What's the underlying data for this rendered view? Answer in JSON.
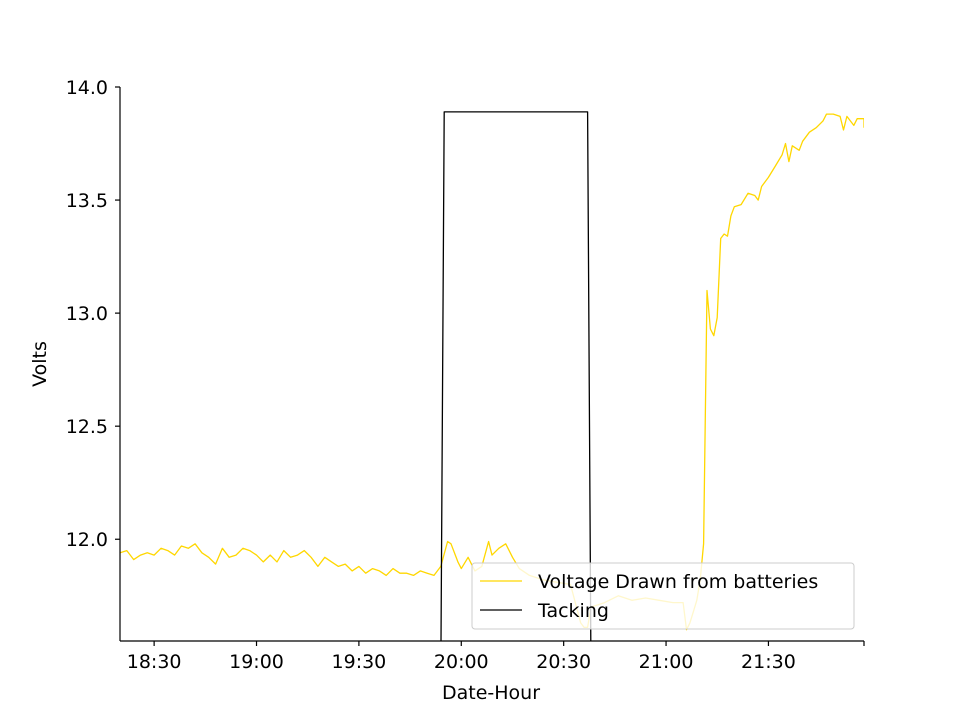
{
  "chart_data": {
    "type": "line",
    "title": "",
    "xlabel": "Date-Hour",
    "ylabel": "Volts",
    "xlim": [
      "18:20",
      "21:58"
    ],
    "ylim": [
      11.55,
      14.0
    ],
    "x_ticks": [
      "18:30",
      "19:00",
      "19:30",
      "20:00",
      "20:30",
      "21:00",
      "21:30"
    ],
    "y_ticks": [
      "12.0",
      "12.5",
      "13.0",
      "13.5",
      "14.0"
    ],
    "grid": false,
    "legend_position": "lower-right",
    "series": [
      {
        "name": "Voltage Drawn from batteries",
        "color": "#ffd700",
        "points": [
          [
            "18:20",
            11.94
          ],
          [
            "18:22",
            11.95
          ],
          [
            "18:24",
            11.91
          ],
          [
            "18:26",
            11.93
          ],
          [
            "18:28",
            11.94
          ],
          [
            "18:30",
            11.93
          ],
          [
            "18:32",
            11.96
          ],
          [
            "18:34",
            11.95
          ],
          [
            "18:36",
            11.93
          ],
          [
            "18:38",
            11.97
          ],
          [
            "18:40",
            11.96
          ],
          [
            "18:42",
            11.98
          ],
          [
            "18:44",
            11.94
          ],
          [
            "18:46",
            11.92
          ],
          [
            "18:48",
            11.89
          ],
          [
            "18:50",
            11.96
          ],
          [
            "18:52",
            11.92
          ],
          [
            "18:54",
            11.93
          ],
          [
            "18:56",
            11.96
          ],
          [
            "18:58",
            11.95
          ],
          [
            "19:00",
            11.93
          ],
          [
            "19:02",
            11.9
          ],
          [
            "19:04",
            11.93
          ],
          [
            "19:06",
            11.9
          ],
          [
            "19:08",
            11.95
          ],
          [
            "19:10",
            11.92
          ],
          [
            "19:12",
            11.93
          ],
          [
            "19:14",
            11.95
          ],
          [
            "19:16",
            11.92
          ],
          [
            "19:18",
            11.88
          ],
          [
            "19:20",
            11.92
          ],
          [
            "19:22",
            11.9
          ],
          [
            "19:24",
            11.88
          ],
          [
            "19:26",
            11.89
          ],
          [
            "19:28",
            11.86
          ],
          [
            "19:30",
            11.88
          ],
          [
            "19:32",
            11.85
          ],
          [
            "19:34",
            11.87
          ],
          [
            "19:36",
            11.86
          ],
          [
            "19:38",
            11.84
          ],
          [
            "19:40",
            11.87
          ],
          [
            "19:42",
            11.85
          ],
          [
            "19:44",
            11.85
          ],
          [
            "19:46",
            11.84
          ],
          [
            "19:48",
            11.86
          ],
          [
            "19:50",
            11.85
          ],
          [
            "19:52",
            11.84
          ],
          [
            "19:54",
            11.88
          ],
          [
            "19:56",
            11.99
          ],
          [
            "19:57",
            11.98
          ],
          [
            "19:59",
            11.9
          ],
          [
            "20:00",
            11.87
          ],
          [
            "20:02",
            11.92
          ],
          [
            "20:04",
            11.86
          ],
          [
            "20:06",
            11.88
          ],
          [
            "20:08",
            11.99
          ],
          [
            "20:09",
            11.93
          ],
          [
            "20:11",
            11.96
          ],
          [
            "20:13",
            11.98
          ],
          [
            "20:15",
            11.92
          ],
          [
            "20:17",
            11.87
          ],
          [
            "20:20",
            11.84
          ],
          [
            "20:24",
            11.82
          ],
          [
            "20:28",
            11.81
          ],
          [
            "20:32",
            11.8
          ],
          [
            "20:35",
            11.63
          ],
          [
            "20:36",
            11.61
          ],
          [
            "20:37",
            11.61
          ],
          [
            "20:38",
            11.7
          ],
          [
            "20:42",
            11.72
          ],
          [
            "20:46",
            11.75
          ],
          [
            "20:50",
            11.73
          ],
          [
            "20:54",
            11.74
          ],
          [
            "20:58",
            11.73
          ],
          [
            "21:02",
            11.72
          ],
          [
            "21:05",
            11.72
          ],
          [
            "21:06",
            11.6
          ],
          [
            "21:07",
            11.63
          ],
          [
            "21:08",
            11.68
          ],
          [
            "21:09",
            11.73
          ],
          [
            "21:10",
            11.82
          ],
          [
            "21:11",
            11.98
          ],
          [
            "21:12",
            13.1
          ],
          [
            "21:13",
            12.93
          ],
          [
            "21:14",
            12.9
          ],
          [
            "21:15",
            12.98
          ],
          [
            "21:16",
            13.33
          ],
          [
            "21:17",
            13.35
          ],
          [
            "21:18",
            13.34
          ],
          [
            "21:19",
            13.43
          ],
          [
            "21:20",
            13.47
          ],
          [
            "21:22",
            13.48
          ],
          [
            "21:24",
            13.53
          ],
          [
            "21:26",
            13.52
          ],
          [
            "21:27",
            13.5
          ],
          [
            "21:28",
            13.56
          ],
          [
            "21:30",
            13.6
          ],
          [
            "21:32",
            13.65
          ],
          [
            "21:34",
            13.7
          ],
          [
            "21:35",
            13.75
          ],
          [
            "21:36",
            13.67
          ],
          [
            "21:37",
            13.74
          ],
          [
            "21:39",
            13.72
          ],
          [
            "21:40",
            13.76
          ],
          [
            "21:42",
            13.8
          ],
          [
            "21:44",
            13.82
          ],
          [
            "21:46",
            13.85
          ],
          [
            "21:47",
            13.88
          ],
          [
            "21:49",
            13.88
          ],
          [
            "21:51",
            13.87
          ],
          [
            "21:52",
            13.81
          ],
          [
            "21:53",
            13.87
          ],
          [
            "21:55",
            13.83
          ],
          [
            "21:56",
            13.86
          ],
          [
            "21:58",
            13.86
          ],
          [
            "21:58",
            13.82
          ]
        ]
      },
      {
        "name": "Tacking",
        "color": "#000000",
        "points": [
          [
            "18:20",
            11.4
          ],
          [
            "19:54",
            11.4
          ],
          [
            "19:55",
            13.89
          ],
          [
            "20:37",
            13.89
          ],
          [
            "20:38",
            11.4
          ],
          [
            "21:58",
            11.4
          ]
        ]
      }
    ]
  }
}
